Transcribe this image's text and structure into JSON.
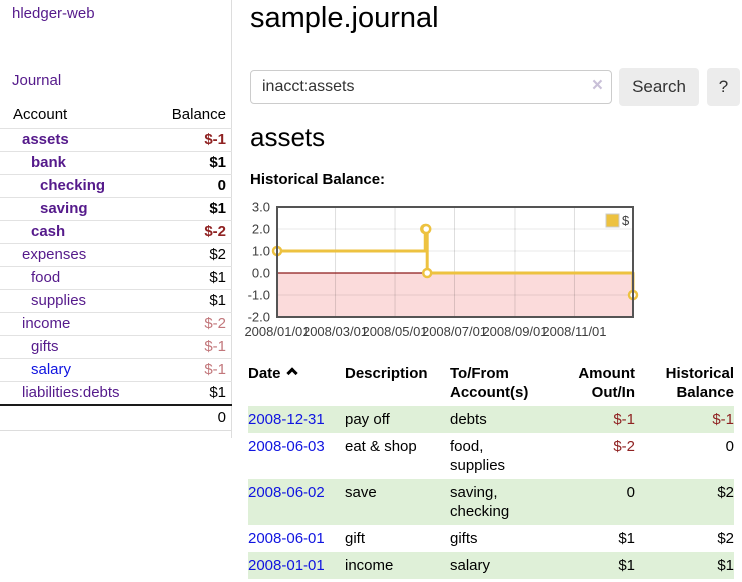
{
  "app": {
    "name": "hledger-web"
  },
  "sidebar": {
    "journal_label": "Journal",
    "accounts_table": {
      "headers": {
        "account": "Account",
        "balance": "Balance"
      },
      "rows": [
        {
          "account": "assets",
          "depth": 0,
          "bold": true,
          "balance": "$-1",
          "balance_style": "neg-strong"
        },
        {
          "account": "bank",
          "depth": 1,
          "bold": true,
          "balance": "$1"
        },
        {
          "account": "checking",
          "depth": 2,
          "bold": true,
          "balance": "0"
        },
        {
          "account": "saving",
          "depth": 2,
          "bold": true,
          "balance": "$1"
        },
        {
          "account": "cash",
          "depth": 1,
          "bold": true,
          "balance": "$-2",
          "balance_style": "neg-strong"
        },
        {
          "account": "expenses",
          "depth": 0,
          "bold": false,
          "balance": "$2"
        },
        {
          "account": "food",
          "depth": 1,
          "bold": false,
          "balance": "$1"
        },
        {
          "account": "supplies",
          "depth": 1,
          "bold": false,
          "balance": "$1"
        },
        {
          "account": "income",
          "depth": 0,
          "bold": false,
          "balance": "$-2",
          "balance_style": "neg-soft"
        },
        {
          "account": "gifts",
          "depth": 1,
          "bold": false,
          "balance": "$-1",
          "balance_style": "neg-soft"
        },
        {
          "account": "salary",
          "depth": 1,
          "bold": false,
          "balance": "$-1",
          "balance_style": "neg-soft",
          "link_color": "blue"
        },
        {
          "account": "liabilities:debts",
          "depth": 0,
          "bold": false,
          "balance": "$1"
        }
      ],
      "total": "0"
    }
  },
  "main": {
    "title": "sample.journal",
    "search": {
      "value": "inacct:assets",
      "clear_icon": "×",
      "button_label": "Search",
      "help_label": "?"
    },
    "account_heading": "assets",
    "chart_label": "Historical Balance:"
  },
  "register": {
    "headers": [
      {
        "label": "Date",
        "sorted": "ascending"
      },
      {
        "label": "Description"
      },
      {
        "label": "To/From Account(s)"
      },
      {
        "label": "Amount Out/In"
      },
      {
        "label": "Historical Balance"
      }
    ],
    "rows": [
      {
        "date": "2008-12-31",
        "description": "pay off",
        "accounts": "debts",
        "amount": "$-1",
        "amount_negative": true,
        "balance": "$-1",
        "balance_negative": true
      },
      {
        "date": "2008-06-03",
        "description": "eat & shop",
        "accounts": "food, supplies",
        "amount": "$-2",
        "amount_negative": true,
        "balance": "0",
        "balance_negative": false
      },
      {
        "date": "2008-06-02",
        "description": "save",
        "accounts": "saving, checking",
        "amount": "0",
        "amount_negative": false,
        "balance": "$2",
        "balance_negative": false
      },
      {
        "date": "2008-06-01",
        "description": "gift",
        "accounts": "gifts",
        "amount": "$1",
        "amount_negative": false,
        "balance": "$2",
        "balance_negative": false
      },
      {
        "date": "2008-01-01",
        "description": "income",
        "accounts": "salary",
        "amount": "$1",
        "amount_negative": false,
        "balance": "$1",
        "balance_negative": false
      }
    ]
  },
  "chart_data": {
    "type": "line",
    "step": true,
    "title": "Historical Balance:",
    "series": [
      {
        "name": "$",
        "color": "#EDC240",
        "points": [
          [
            "2008-01-01",
            1
          ],
          [
            "2008-06-01",
            2
          ],
          [
            "2008-06-02",
            2
          ],
          [
            "2008-06-03",
            0
          ],
          [
            "2008-12-31",
            -1
          ]
        ]
      }
    ],
    "x_ticks": [
      "2008/01/01",
      "2008/03/01",
      "2008/05/01",
      "2008/07/01",
      "2008/09/01",
      "2008/11/01"
    ],
    "x_range": [
      "2008-01-01",
      "2008-12-31"
    ],
    "y_ticks": [
      "3.0",
      "2.0",
      "1.0",
      "0.0",
      "-1.0",
      "-2.0"
    ],
    "y_range": [
      -2,
      3
    ],
    "grid": true,
    "legend": {
      "label": "$",
      "position": "top-right"
    },
    "below_zero_fill": "#fbdbdb",
    "zero_line_color": "#8c1a1a",
    "border_color": "#545454"
  },
  "colors": {
    "link_purple": "#551a8b",
    "link_blue": "#1014e0",
    "negative_strong": "#8f2222",
    "negative_soft": "#c2777b",
    "row_green": "#dff0d8",
    "series_yellow": "#EDC240"
  }
}
